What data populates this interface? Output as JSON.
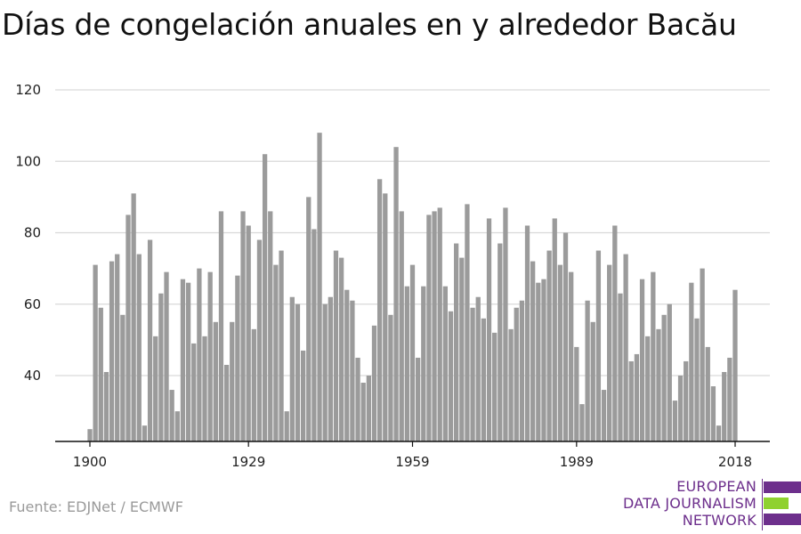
{
  "title": "Días de congelación anuales en y alrededor Bacău",
  "source": "Fuente: EDJNet / ECMWF",
  "logo": {
    "line1": "EUROPEAN",
    "line2": "DATA JOURNALISM",
    "line3": "NETWORK",
    "colors": [
      "#6d2f8c",
      "#8fd12f",
      "#6d2f8c"
    ]
  },
  "colors": {
    "bar": "#9b9b9b",
    "grid": "#d9d9d9",
    "axis": "#111111",
    "tick_text": "#222222"
  },
  "chart_data": {
    "type": "bar",
    "title": "Días de congelación anuales en y alrededor Bacău",
    "xlabel": "",
    "ylabel": "",
    "ylim": [
      22,
      120
    ],
    "yticks": [
      40,
      60,
      80,
      100,
      120
    ],
    "xticks": [
      1900,
      1929,
      1959,
      1989,
      2018
    ],
    "grid": true,
    "start_year": 1900,
    "values": [
      25,
      71,
      59,
      41,
      72,
      74,
      57,
      85,
      91,
      74,
      26,
      78,
      51,
      63,
      69,
      36,
      30,
      67,
      66,
      49,
      70,
      51,
      69,
      55,
      86,
      43,
      55,
      68,
      86,
      82,
      53,
      78,
      102,
      86,
      71,
      75,
      30,
      62,
      60,
      47,
      90,
      81,
      108,
      60,
      62,
      75,
      73,
      64,
      61,
      45,
      38,
      40,
      54,
      95,
      91,
      57,
      104,
      86,
      65,
      71,
      45,
      65,
      85,
      86,
      87,
      65,
      58,
      77,
      73,
      88,
      59,
      62,
      56,
      84,
      52,
      77,
      87,
      53,
      59,
      61,
      82,
      72,
      66,
      67,
      75,
      84,
      71,
      80,
      69,
      48,
      32,
      61,
      55,
      75,
      36,
      71,
      82,
      63,
      74,
      44,
      46,
      67,
      51,
      69,
      53,
      57,
      60,
      33,
      40,
      44,
      66,
      56,
      70,
      48,
      37,
      26,
      41,
      45,
      64
    ]
  }
}
